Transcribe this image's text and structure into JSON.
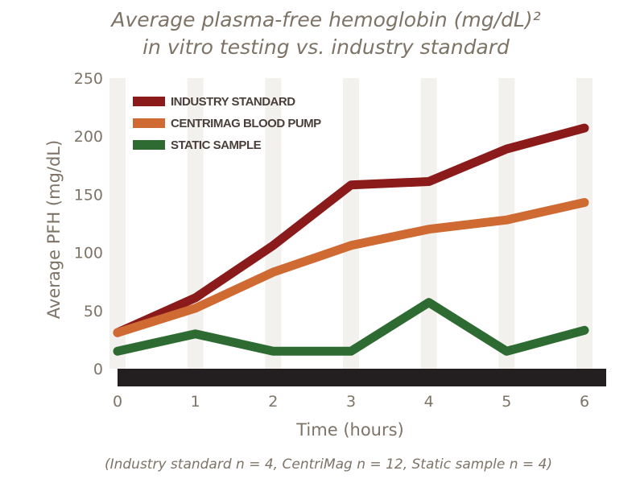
{
  "chart_data": {
    "type": "line",
    "title": "Average plasma-free hemoglobin (mg/dL)²",
    "subtitle": "in vitro testing vs. industry standard",
    "xlabel": "Time (hours)",
    "ylabel": "Average PFH (mg/dL)",
    "xlim": [
      0,
      6
    ],
    "ylim": [
      0,
      250
    ],
    "x_ticks": [
      "0",
      "1",
      "2",
      "3",
      "4",
      "5",
      "6"
    ],
    "y_ticks": [
      "0",
      "50",
      "100",
      "150",
      "200",
      "250"
    ],
    "x": [
      0,
      1,
      2,
      3,
      4,
      5,
      6
    ],
    "legend_position": "top-left",
    "grid": "vertical bands",
    "series": [
      {
        "name": "INDUSTRY STANDARD",
        "color": "#8b1a1a",
        "values": [
          31,
          61,
          106,
          158,
          161,
          189,
          207
        ]
      },
      {
        "name": "CENTRIMAG BLOOD PUMP",
        "color": "#cf6a33",
        "values": [
          31,
          52,
          83,
          106,
          120,
          128,
          143
        ]
      },
      {
        "name": "STATIC SAMPLE",
        "color": "#2e6b32",
        "values": [
          15,
          30,
          15,
          15,
          57,
          15,
          33
        ]
      }
    ],
    "footnote": "(Industry standard n = 4, CentriMag n = 12, Static sample n = 4)"
  }
}
